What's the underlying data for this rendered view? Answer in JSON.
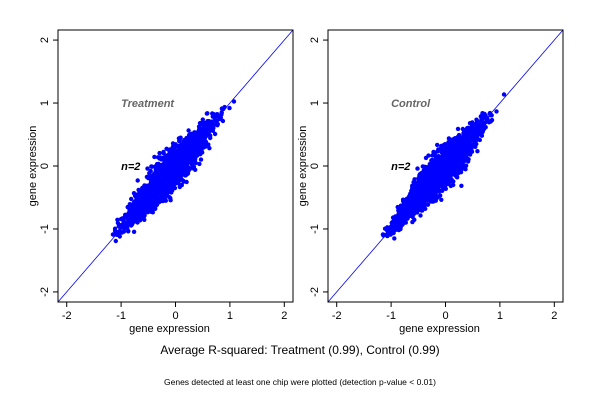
{
  "chart_data": [
    {
      "type": "scatter",
      "title": "Treatment",
      "annotation": "n=2",
      "xlabel": "gene expression",
      "ylabel": "gene expression",
      "xlim": [
        -2.16,
        2.16
      ],
      "ylim": [
        -2.16,
        2.16
      ],
      "xticks": [
        "-2",
        "-1",
        "0",
        "1",
        "2"
      ],
      "yticks": [
        "-2",
        "-1",
        "0",
        "1",
        "2"
      ],
      "reference_line": {
        "slope": 1,
        "intercept": 0
      },
      "points_x_extent": [
        -1.15,
        1.2
      ],
      "point_color": "#0000ff",
      "grid": false
    },
    {
      "type": "scatter",
      "title": "Control",
      "annotation": "n=2",
      "xlabel": "gene expression",
      "ylabel": "gene expression",
      "xlim": [
        -2.16,
        2.16
      ],
      "ylim": [
        -2.16,
        2.16
      ],
      "xticks": [
        "-2",
        "-1",
        "0",
        "1",
        "2"
      ],
      "yticks": [
        "-2",
        "-1",
        "0",
        "1",
        "2"
      ],
      "reference_line": {
        "slope": 1,
        "intercept": 0
      },
      "points_x_extent": [
        -1.15,
        1.2
      ],
      "point_color": "#0000ff",
      "grid": false
    }
  ],
  "caption": "Average R-squared: Treatment (0.99), Control (0.99)",
  "footnote": "Genes detected at least one chip were plotted (detection p-value < 0.01)",
  "colors": {
    "points": "#0000ff",
    "line": "#0000ff",
    "title": "#666666"
  }
}
